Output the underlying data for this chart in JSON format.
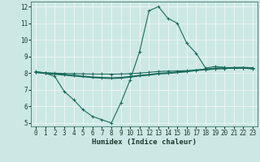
{
  "xlabel": "Humidex (Indice chaleur)",
  "bg_color": "#cce8e4",
  "grid_color": "#e8f4f2",
  "line_color": "#1a6b5a",
  "xlim": [
    -0.5,
    23.5
  ],
  "ylim": [
    4.8,
    12.3
  ],
  "yticks": [
    5,
    6,
    7,
    8,
    9,
    10,
    11,
    12
  ],
  "xticks": [
    0,
    1,
    2,
    3,
    4,
    5,
    6,
    7,
    8,
    9,
    10,
    11,
    12,
    13,
    14,
    15,
    16,
    17,
    18,
    19,
    20,
    21,
    22,
    23
  ],
  "series1_x": [
    0,
    1,
    2,
    3,
    4,
    5,
    6,
    7,
    8,
    9,
    10,
    11,
    12,
    13,
    14,
    15,
    16,
    17,
    18,
    19,
    20,
    21,
    22,
    23
  ],
  "series1_y": [
    8.1,
    8.0,
    7.8,
    6.9,
    6.4,
    5.8,
    5.4,
    5.2,
    5.0,
    6.2,
    7.6,
    9.3,
    11.75,
    12.0,
    11.3,
    11.0,
    9.8,
    9.2,
    8.3,
    8.4,
    8.35,
    8.3,
    8.3,
    8.25
  ],
  "series2_x": [
    0,
    1,
    2,
    3,
    4,
    5,
    6,
    7,
    8,
    9,
    10,
    11,
    12,
    13,
    14,
    15,
    16,
    17,
    18,
    19,
    20,
    21,
    22,
    23
  ],
  "series2_y": [
    8.05,
    8.0,
    7.95,
    7.9,
    7.85,
    7.8,
    7.75,
    7.72,
    7.7,
    7.72,
    7.78,
    7.85,
    7.9,
    7.97,
    8.0,
    8.05,
    8.1,
    8.18,
    8.22,
    8.28,
    8.3,
    8.32,
    8.33,
    8.3
  ],
  "series3_x": [
    0,
    1,
    2,
    3,
    4,
    5,
    6,
    7,
    8,
    9,
    10,
    11,
    12,
    13,
    14,
    15,
    16,
    17,
    18,
    19,
    20,
    21,
    22,
    23
  ],
  "series3_y": [
    8.05,
    8.02,
    8.0,
    7.98,
    7.97,
    7.96,
    7.95,
    7.95,
    7.94,
    7.95,
    7.97,
    8.0,
    8.05,
    8.1,
    8.12,
    8.13,
    8.15,
    8.18,
    8.2,
    8.25,
    8.28,
    8.3,
    8.32,
    8.3
  ],
  "tick_fontsize": 5.5,
  "xlabel_fontsize": 6.5,
  "lw1": 0.8,
  "lw2": 1.5,
  "lw3": 0.8,
  "marker_size": 2.5,
  "marker_ew": 0.7
}
